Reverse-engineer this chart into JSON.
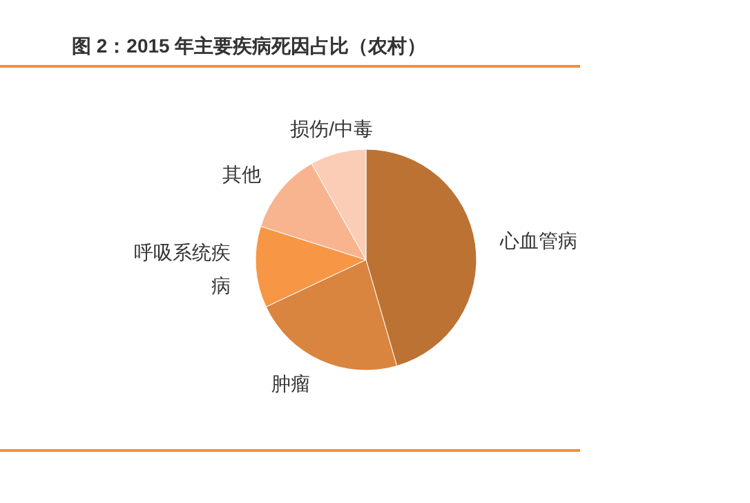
{
  "chart_data": {
    "type": "pie",
    "title": "图 2：2015 年主要疾病死因占比（农村）",
    "categories": [
      "心血管病",
      "肿瘤",
      "呼吸系统疾病",
      "其他",
      "损伤/中毒"
    ],
    "values": [
      45.5,
      22.5,
      11.9,
      11.9,
      8.2
    ],
    "colors": [
      "#bb7233",
      "#d9843f",
      "#f79746",
      "#f8b48e",
      "#fbcdb6"
    ]
  }
}
